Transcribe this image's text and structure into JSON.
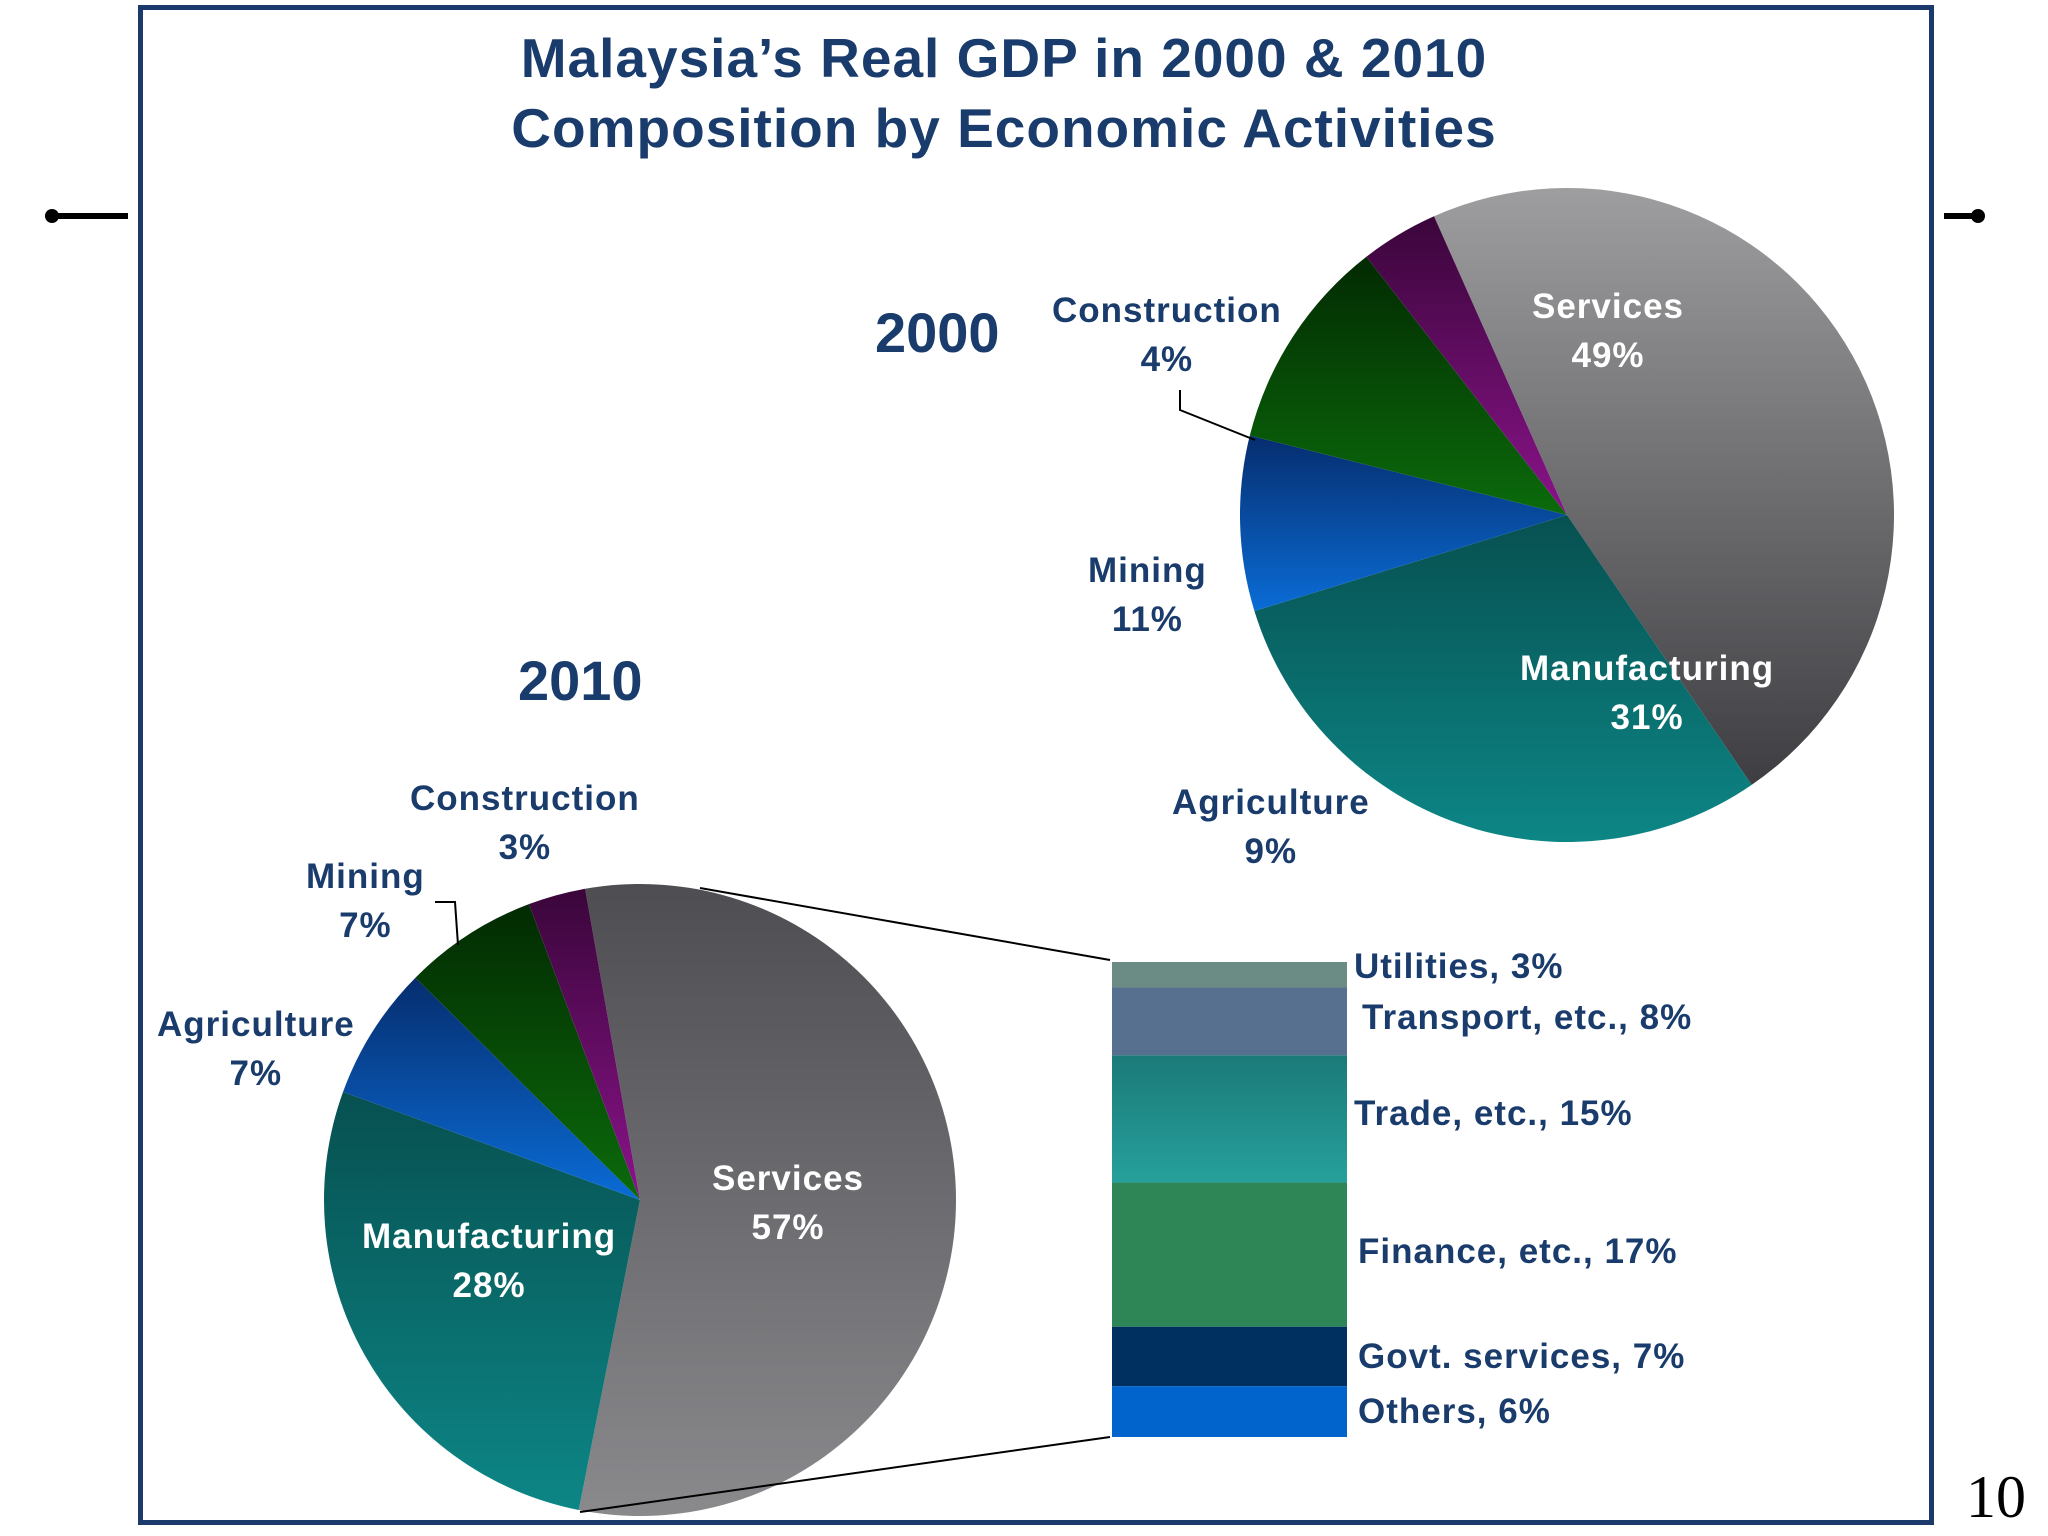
{
  "slide": {
    "title_line1": "Malaysia’s Real GDP in 2000 & 2010",
    "title_line2": "Composition by Economic Activities",
    "page_number": "10"
  },
  "chart_data": [
    {
      "type": "pie",
      "title": "2000",
      "slices": [
        {
          "name": "Services",
          "label": "Services",
          "value_label": "49%",
          "value": 49,
          "color": "#777779"
        },
        {
          "name": "Manufacturing",
          "label": "Manufacturing",
          "value_label": "31%",
          "value": 31,
          "color": "#0f7070"
        },
        {
          "name": "Agriculture",
          "label": "Agriculture",
          "value_label": "9%",
          "value": 9,
          "color": "#0a4fa8"
        },
        {
          "name": "Mining",
          "label": "Mining",
          "value_label": "11%",
          "value": 11,
          "color": "#0a4a0a"
        },
        {
          "name": "Construction",
          "label": "Construction",
          "value_label": "4%",
          "value": 4,
          "color": "#5a0a5a"
        }
      ]
    },
    {
      "type": "pie",
      "title": "2010",
      "slices": [
        {
          "name": "Services",
          "label": "Services",
          "value_label": "57%",
          "value": 57,
          "color": "#6d6c70"
        },
        {
          "name": "Manufacturing",
          "label": "Manufacturing",
          "value_label": "28%",
          "value": 28,
          "color": "#0f7070"
        },
        {
          "name": "Agriculture",
          "label": "Agriculture",
          "value_label": "7%",
          "value": 7,
          "color": "#0a4fa8"
        },
        {
          "name": "Mining",
          "label": "Mining",
          "value_label": "7%",
          "value": 7,
          "color": "#0a4a0a"
        },
        {
          "name": "Construction",
          "label": "Construction",
          "value_label": "3%",
          "value": 3,
          "color": "#5a0a5a"
        }
      ],
      "breakdown_of": "Services",
      "breakdown": [
        {
          "name": "Utilities",
          "label": "Utilities, 3%",
          "value": 3,
          "color": "#6a8c84"
        },
        {
          "name": "Transport",
          "label": "Transport, etc., 8%",
          "value": 8,
          "color": "#577090"
        },
        {
          "name": "Trade",
          "label": "Trade, etc., 15%",
          "value": 15,
          "color": "#1f8c8a"
        },
        {
          "name": "Finance",
          "label": "Finance, etc., 17%",
          "value": 17,
          "color": "#2e8556"
        },
        {
          "name": "Govt. services",
          "label": "Govt. services, 7%",
          "value": 7,
          "color": "#003060"
        },
        {
          "name": "Others",
          "label": "Others, 6%",
          "value": 6,
          "color": "#0064cc"
        }
      ]
    }
  ]
}
